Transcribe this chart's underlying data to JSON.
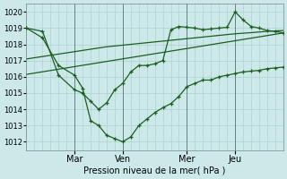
{
  "xlabel": "Pression niveau de la mer( hPa )",
  "bg_color": "#cce8e8",
  "grid_color": "#a8cccc",
  "line_color": "#1a5e20",
  "ylim": [
    1011.5,
    1020.5
  ],
  "yticks": [
    1012,
    1013,
    1014,
    1015,
    1016,
    1017,
    1018,
    1019,
    1020
  ],
  "xtick_labels": [
    "Mar",
    "Ven",
    "Mer",
    "Jeu"
  ],
  "xtick_pos": [
    24,
    48,
    80,
    104
  ],
  "xlim": [
    0,
    128
  ],
  "num_minor_x": 4,
  "line1_x": [
    0,
    8,
    16,
    24,
    32,
    40,
    48,
    56,
    64,
    72,
    80,
    88,
    96,
    104,
    112,
    120,
    128
  ],
  "line1_y": [
    1017.1,
    1017.25,
    1017.4,
    1017.55,
    1017.7,
    1017.85,
    1017.95,
    1018.05,
    1018.15,
    1018.25,
    1018.35,
    1018.45,
    1018.55,
    1018.65,
    1018.72,
    1018.8,
    1018.85
  ],
  "line2_x": [
    0,
    128
  ],
  "line2_y": [
    1016.15,
    1018.7
  ],
  "line3_x": [
    0,
    8,
    16,
    24,
    28,
    32,
    36,
    40,
    44,
    48,
    52,
    56,
    60,
    64,
    68,
    72,
    76,
    80,
    84,
    88,
    92,
    96,
    100,
    104,
    108,
    112,
    116,
    120,
    124,
    128
  ],
  "line3_y": [
    1019.0,
    1018.4,
    1016.7,
    1016.1,
    1015.3,
    1013.3,
    1013.0,
    1012.4,
    1012.2,
    1012.0,
    1012.3,
    1013.0,
    1013.4,
    1013.8,
    1014.1,
    1014.35,
    1014.8,
    1015.4,
    1015.6,
    1015.8,
    1015.8,
    1016.0,
    1016.1,
    1016.2,
    1016.3,
    1016.35,
    1016.4,
    1016.5,
    1016.55,
    1016.6
  ],
  "line4_x": [
    0,
    8,
    16,
    24,
    28,
    32,
    36,
    40,
    44,
    48,
    52,
    56,
    60,
    64,
    68,
    72,
    76,
    80,
    84,
    88,
    92,
    96,
    100,
    104,
    108,
    112,
    116,
    120,
    124,
    128
  ],
  "line4_y": [
    1019.0,
    1018.8,
    1016.1,
    1015.2,
    1015.0,
    1014.5,
    1014.0,
    1014.4,
    1015.2,
    1015.6,
    1016.3,
    1016.7,
    1016.7,
    1016.8,
    1017.0,
    1018.9,
    1019.1,
    1019.05,
    1019.0,
    1018.9,
    1018.95,
    1019.0,
    1019.05,
    1020.0,
    1019.5,
    1019.1,
    1019.0,
    1018.85,
    1018.8,
    1018.7
  ],
  "vlines_x": [
    24,
    48,
    80,
    104
  ]
}
